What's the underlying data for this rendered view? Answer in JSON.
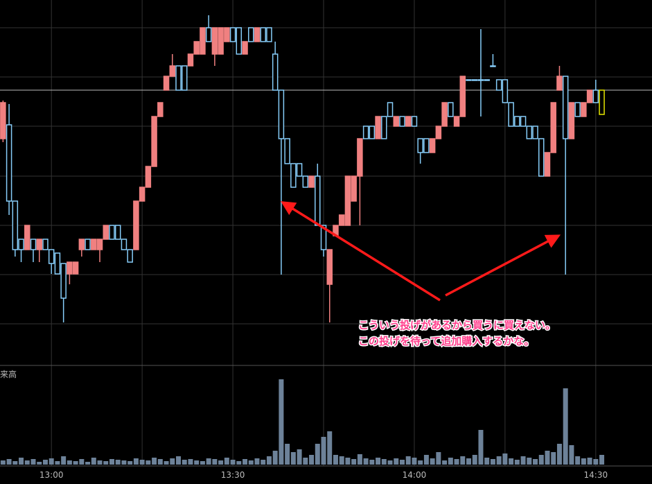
{
  "chart_data": {
    "type": "candlestick",
    "open": [
      330,
      350,
      240,
      185,
      170,
      185,
      170,
      185,
      170,
      165,
      150,
      135,
      135,
      170,
      185,
      170,
      170,
      185,
      205,
      205,
      185,
      170,
      170,
      240,
      260,
      290,
      362,
      400,
      420,
      435,
      435,
      435,
      452,
      452,
      490,
      452,
      452,
      470,
      490,
      490,
      452,
      490,
      470,
      490,
      490,
      452,
      400,
      330,
      294,
      294,
      276,
      260,
      276,
      205,
      120,
      190,
      205,
      205,
      240,
      276,
      348,
      348,
      330,
      362,
      382,
      348,
      362,
      348,
      362,
      330,
      330,
      310,
      330,
      348,
      382,
      348,
      362,
      415,
      415,
      415,
      415,
      435,
      415,
      415,
      382,
      362,
      362,
      348,
      348,
      330,
      276,
      310,
      400,
      420,
      330,
      382,
      362,
      382,
      400,
      400
    ],
    "high": [
      385,
      380,
      240,
      185,
      205,
      185,
      185,
      185,
      170,
      165,
      150,
      152,
      152,
      185,
      185,
      185,
      185,
      205,
      205,
      205,
      185,
      170,
      240,
      260,
      290,
      362,
      382,
      420,
      452,
      435,
      435,
      452,
      470,
      490,
      508,
      490,
      490,
      490,
      490,
      490,
      470,
      490,
      490,
      490,
      490,
      470,
      400,
      330,
      294,
      294,
      276,
      276,
      294,
      205,
      170,
      205,
      220,
      276,
      276,
      330,
      348,
      348,
      362,
      362,
      382,
      362,
      362,
      362,
      362,
      330,
      330,
      330,
      348,
      382,
      382,
      362,
      420,
      415,
      415,
      488,
      415,
      452,
      415,
      415,
      382,
      362,
      362,
      348,
      348,
      330,
      310,
      382,
      435,
      420,
      382,
      382,
      382,
      400,
      415,
      400
    ],
    "low": [
      325,
      220,
      160,
      152,
      170,
      152,
      152,
      170,
      135,
      135,
      65,
      120,
      135,
      160,
      170,
      170,
      152,
      185,
      185,
      185,
      170,
      152,
      170,
      240,
      260,
      290,
      362,
      400,
      420,
      400,
      400,
      435,
      452,
      452,
      470,
      435,
      452,
      470,
      470,
      452,
      452,
      470,
      470,
      470,
      470,
      400,
      134,
      294,
      260,
      276,
      260,
      260,
      205,
      160,
      65,
      190,
      205,
      205,
      240,
      205,
      330,
      330,
      330,
      330,
      362,
      348,
      348,
      348,
      348,
      294,
      310,
      310,
      330,
      348,
      362,
      348,
      362,
      415,
      415,
      362,
      415,
      435,
      400,
      382,
      348,
      348,
      348,
      330,
      330,
      276,
      276,
      310,
      400,
      134,
      330,
      362,
      362,
      382,
      382,
      365
    ],
    "close": [
      382,
      240,
      170,
      170,
      205,
      170,
      185,
      170,
      150,
      135,
      100,
      152,
      152,
      185,
      170,
      185,
      185,
      205,
      185,
      185,
      170,
      152,
      240,
      260,
      290,
      362,
      382,
      420,
      435,
      400,
      400,
      452,
      470,
      490,
      470,
      490,
      490,
      490,
      470,
      452,
      470,
      470,
      490,
      470,
      470,
      400,
      330,
      294,
      260,
      276,
      260,
      276,
      205,
      170,
      170,
      205,
      220,
      276,
      276,
      330,
      330,
      330,
      362,
      330,
      362,
      362,
      348,
      362,
      348,
      310,
      310,
      330,
      348,
      382,
      362,
      362,
      420,
      415,
      415,
      415,
      415,
      435,
      400,
      382,
      348,
      348,
      348,
      330,
      330,
      276,
      310,
      382,
      420,
      330,
      382,
      362,
      382,
      400,
      382,
      365
    ],
    "up_color": "#f08080",
    "down_color": "#87cefa",
    "last_color": "#e6e600",
    "xlim": [
      -0.5,
      107.3
    ],
    "ylim": [
      0,
      530
    ],
    "yticks": [
      490,
      419,
      348,
      276,
      205,
      134,
      63
    ],
    "xticks": [
      {
        "value": 8,
        "label": "13:00"
      },
      {
        "value": 38,
        "label": "13:30"
      },
      {
        "value": 68,
        "label": "14:00"
      },
      {
        "value": 98,
        "label": "14:30"
      }
    ],
    "xminor": [
      23,
      53,
      83
    ],
    "reference_line": 400,
    "volume": {
      "label": "来高",
      "color": "#6d8299",
      "ylim": [
        0,
        140
      ],
      "values": [
        6,
        8,
        5,
        10,
        6,
        8,
        4,
        7,
        9,
        5,
        12,
        6,
        5,
        8,
        4,
        10,
        6,
        5,
        8,
        7,
        6,
        5,
        9,
        7,
        6,
        10,
        8,
        5,
        9,
        12,
        7,
        8,
        6,
        5,
        9,
        8,
        6,
        10,
        7,
        5,
        8,
        6,
        9,
        7,
        12,
        20,
        123,
        30,
        18,
        22,
        10,
        14,
        30,
        40,
        48,
        14,
        12,
        10,
        8,
        15,
        9,
        7,
        10,
        8,
        6,
        9,
        7,
        12,
        10,
        6,
        14,
        9,
        18,
        6,
        10,
        8,
        12,
        9,
        14,
        50,
        10,
        8,
        12,
        16,
        9,
        7,
        12,
        10,
        8,
        14,
        20,
        18,
        30,
        110,
        28,
        12,
        9,
        10,
        8,
        14
      ]
    },
    "annotation": [
      "こういう投げがあるから買うに買えない。",
      "この投げを待って追加購入するかな。"
    ]
  }
}
